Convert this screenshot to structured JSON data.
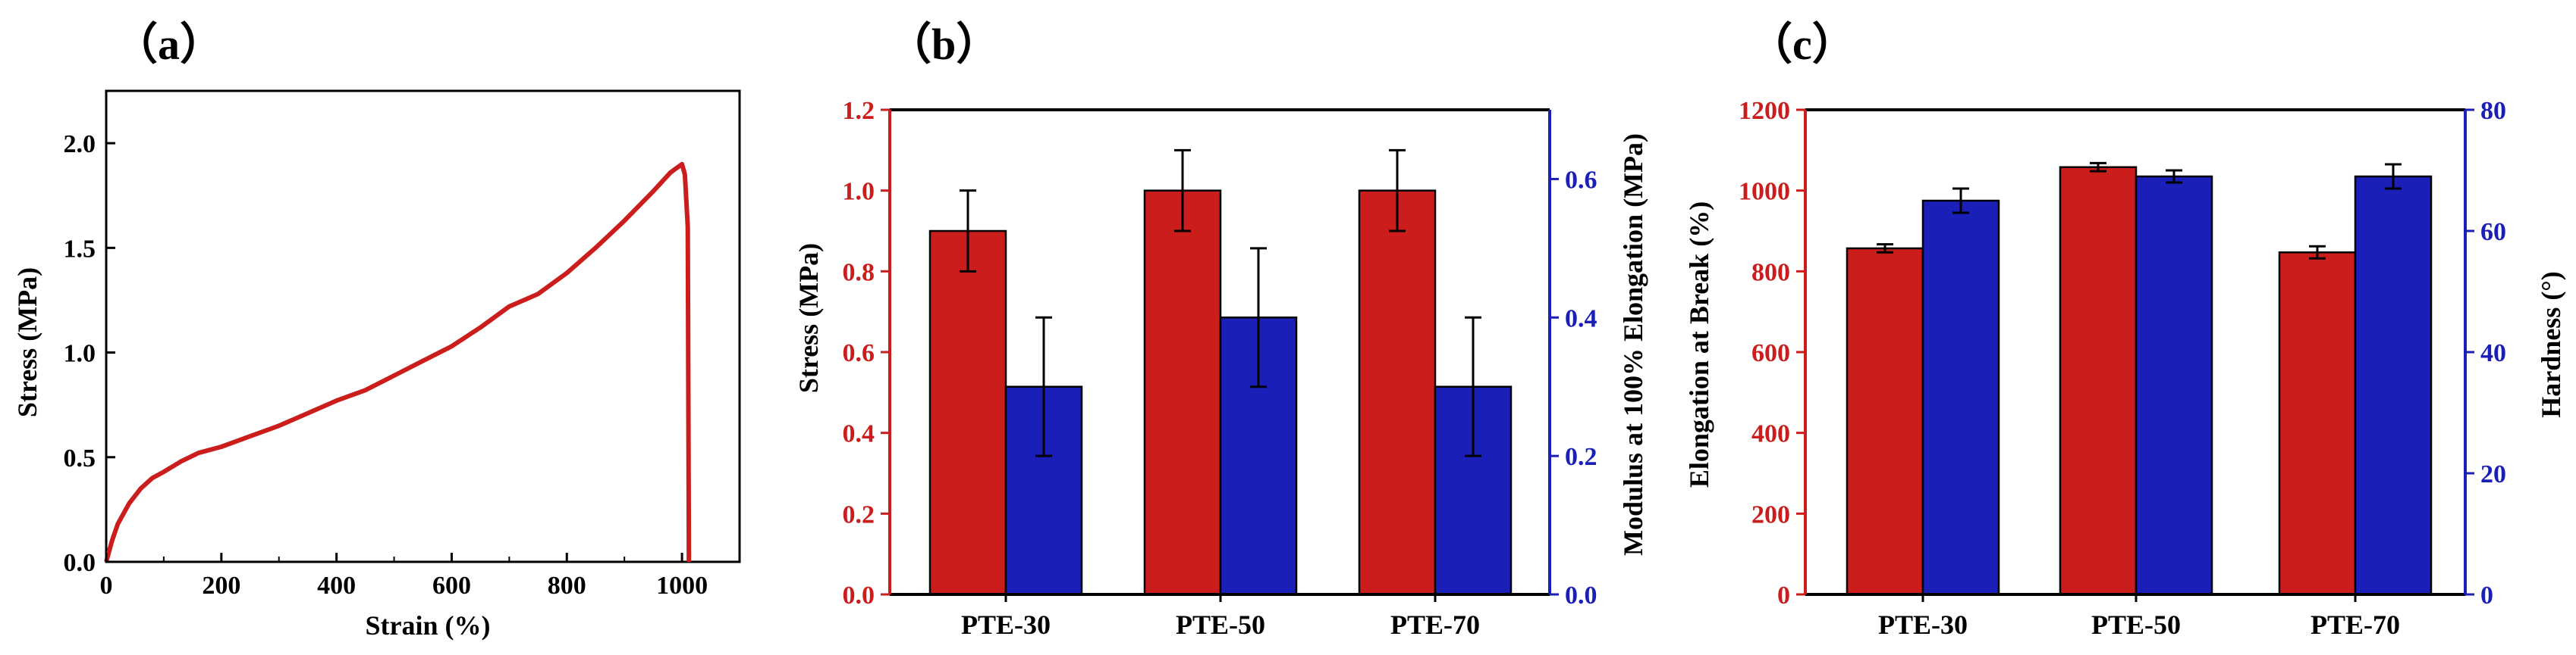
{
  "colors": {
    "red": "#cc1d1d",
    "blue": "#1a1fb8",
    "axis": "#000000"
  },
  "chart_data": [
    {
      "id": "a",
      "type": "line",
      "panel_label": "（a）",
      "xlabel": "Strain (%)",
      "ylabel": "Stress (MPa)",
      "xlim": [
        0,
        1100
      ],
      "ylim": [
        0,
        2.25
      ],
      "xticks": [
        0,
        200,
        400,
        600,
        800,
        1000
      ],
      "yticks": [
        0.0,
        0.5,
        1.0,
        1.5,
        2.0
      ],
      "xtick_labels": [
        "0",
        "200",
        "400",
        "600",
        "800",
        "1000"
      ],
      "ytick_labels": [
        "0.0",
        "0.5",
        "1.0",
        "1.5",
        "2.0"
      ],
      "series": [
        {
          "name": "stress-strain",
          "x": [
            0,
            10,
            20,
            40,
            60,
            80,
            100,
            130,
            160,
            200,
            250,
            300,
            350,
            400,
            450,
            500,
            550,
            600,
            650,
            700,
            750,
            800,
            850,
            900,
            950,
            980,
            1000,
            1005,
            1010,
            1012
          ],
          "y": [
            0.0,
            0.1,
            0.18,
            0.28,
            0.35,
            0.4,
            0.43,
            0.48,
            0.52,
            0.55,
            0.6,
            0.65,
            0.71,
            0.77,
            0.82,
            0.89,
            0.96,
            1.03,
            1.12,
            1.22,
            1.28,
            1.38,
            1.5,
            1.63,
            1.77,
            1.86,
            1.9,
            1.85,
            1.6,
            0.0
          ]
        }
      ]
    },
    {
      "id": "b",
      "type": "bar",
      "panel_label": "（b）",
      "categories": [
        "PTE-30",
        "PTE-50",
        "PTE-70"
      ],
      "ylabel": "Stress (MPa)",
      "ylabel_right": "Modulus at 100% Elongation (MPa)",
      "ylim": [
        0.0,
        1.2
      ],
      "ylim_right": [
        0.0,
        0.7
      ],
      "yticks": [
        0.0,
        0.2,
        0.4,
        0.6,
        0.8,
        1.0,
        1.2
      ],
      "ytick_labels": [
        "0.0",
        "0.2",
        "0.4",
        "0.6",
        "0.8",
        "1.0",
        "1.2"
      ],
      "yticks_right": [
        0.0,
        0.2,
        0.4,
        0.6
      ],
      "ytick_labels_right": [
        "0.0",
        "0.2",
        "0.4",
        "0.6"
      ],
      "series": [
        {
          "name": "Stress",
          "axis": "left",
          "color_key": "red",
          "values": [
            0.9,
            1.0,
            1.0
          ],
          "errors": [
            0.1,
            0.1,
            0.1
          ]
        },
        {
          "name": "Modulus at 100% Elongation",
          "axis": "right",
          "color_key": "blue",
          "values": [
            0.3,
            0.4,
            0.3
          ],
          "errors": [
            0.1,
            0.1,
            0.1
          ]
        }
      ]
    },
    {
      "id": "c",
      "type": "bar",
      "panel_label": "（c）",
      "categories": [
        "PTE-30",
        "PTE-50",
        "PTE-70"
      ],
      "ylabel": "Elongation at Break (%)",
      "ylabel_right": "Hardness (°)",
      "ylim": [
        0,
        1200
      ],
      "ylim_right": [
        0,
        80
      ],
      "yticks": [
        0,
        200,
        400,
        600,
        800,
        1000,
        1200
      ],
      "ytick_labels": [
        "0",
        "200",
        "400",
        "600",
        "800",
        "1000",
        "1200"
      ],
      "yticks_right": [
        0,
        20,
        40,
        60,
        80
      ],
      "ytick_labels_right": [
        "0",
        "20",
        "40",
        "60",
        "80"
      ],
      "series": [
        {
          "name": "Elongation at Break",
          "axis": "left",
          "color_key": "red",
          "values": [
            857,
            1058,
            847
          ],
          "errors": [
            10,
            10,
            15
          ]
        },
        {
          "name": "Hardness",
          "axis": "right",
          "color_key": "blue",
          "values": [
            65,
            69,
            69
          ],
          "errors": [
            2,
            1,
            2
          ]
        }
      ]
    }
  ]
}
